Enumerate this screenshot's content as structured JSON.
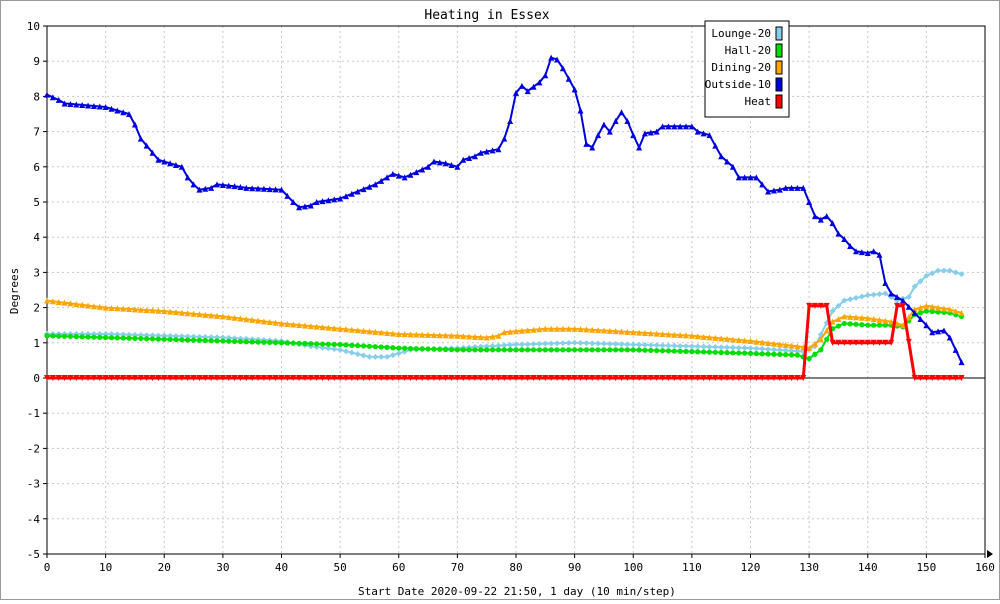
{
  "chart_data": {
    "type": "line",
    "title": "Heating in Essex",
    "xlabel": "Start Date 2020-09-22 21:50, 1 day (10 min/step)",
    "ylabel": "Degrees",
    "xlim": [
      0,
      160
    ],
    "ylim": [
      -5,
      10
    ],
    "xticks": [
      0,
      10,
      20,
      30,
      40,
      50,
      60,
      70,
      80,
      90,
      100,
      110,
      120,
      130,
      140,
      150,
      160
    ],
    "yticks": [
      -5,
      -4,
      -3,
      -2,
      -1,
      0,
      1,
      2,
      3,
      4,
      5,
      6,
      7,
      8,
      9,
      10
    ],
    "grid": true,
    "legend_position": "top-right",
    "series": [
      {
        "name": "Lounge-20",
        "color": "#87ceeb",
        "marker": "diamond",
        "points": [
          [
            0,
            1.25
          ],
          [
            10,
            1.25
          ],
          [
            20,
            1.2
          ],
          [
            30,
            1.15
          ],
          [
            40,
            1.05
          ],
          [
            45,
            0.9
          ],
          [
            50,
            0.8
          ],
          [
            55,
            0.6
          ],
          [
            58,
            0.6
          ],
          [
            62,
            0.8
          ],
          [
            70,
            0.85
          ],
          [
            80,
            0.95
          ],
          [
            90,
            1.0
          ],
          [
            100,
            0.95
          ],
          [
            110,
            0.9
          ],
          [
            120,
            0.85
          ],
          [
            129,
            0.75
          ],
          [
            131,
            0.9
          ],
          [
            134,
            1.9
          ],
          [
            136,
            2.2
          ],
          [
            140,
            2.35
          ],
          [
            143,
            2.4
          ],
          [
            145,
            2.2
          ],
          [
            147,
            2.3
          ],
          [
            148,
            2.6
          ],
          [
            150,
            2.9
          ],
          [
            152,
            3.05
          ],
          [
            154,
            3.05
          ],
          [
            156,
            2.95
          ]
        ]
      },
      {
        "name": "Hall-20",
        "color": "#00dd00",
        "marker": "circle",
        "points": [
          [
            0,
            1.2
          ],
          [
            10,
            1.15
          ],
          [
            20,
            1.1
          ],
          [
            30,
            1.05
          ],
          [
            40,
            1.0
          ],
          [
            50,
            0.95
          ],
          [
            60,
            0.85
          ],
          [
            70,
            0.8
          ],
          [
            80,
            0.8
          ],
          [
            90,
            0.8
          ],
          [
            100,
            0.8
          ],
          [
            110,
            0.75
          ],
          [
            120,
            0.7
          ],
          [
            128,
            0.65
          ],
          [
            130,
            0.55
          ],
          [
            132,
            0.8
          ],
          [
            134,
            1.4
          ],
          [
            136,
            1.55
          ],
          [
            140,
            1.5
          ],
          [
            144,
            1.5
          ],
          [
            146,
            1.45
          ],
          [
            148,
            1.8
          ],
          [
            150,
            1.9
          ],
          [
            154,
            1.85
          ],
          [
            156,
            1.75
          ]
        ]
      },
      {
        "name": "Dining-20",
        "color": "#ffa500",
        "marker": "triangle",
        "points": [
          [
            0,
            2.2
          ],
          [
            10,
            2.0
          ],
          [
            20,
            1.9
          ],
          [
            30,
            1.75
          ],
          [
            40,
            1.55
          ],
          [
            50,
            1.4
          ],
          [
            60,
            1.25
          ],
          [
            70,
            1.2
          ],
          [
            75,
            1.15
          ],
          [
            77,
            1.2
          ],
          [
            78,
            1.3
          ],
          [
            85,
            1.4
          ],
          [
            90,
            1.4
          ],
          [
            100,
            1.3
          ],
          [
            110,
            1.2
          ],
          [
            120,
            1.05
          ],
          [
            128,
            0.9
          ],
          [
            130,
            0.85
          ],
          [
            132,
            1.1
          ],
          [
            134,
            1.6
          ],
          [
            136,
            1.75
          ],
          [
            140,
            1.7
          ],
          [
            144,
            1.6
          ],
          [
            146,
            1.5
          ],
          [
            148,
            1.95
          ],
          [
            150,
            2.05
          ],
          [
            154,
            1.95
          ],
          [
            156,
            1.85
          ]
        ]
      },
      {
        "name": "Outside-10",
        "color": "#0000dd",
        "marker": "triangle",
        "points": [
          [
            0,
            8.05
          ],
          [
            2,
            7.9
          ],
          [
            3,
            7.8
          ],
          [
            10,
            7.7
          ],
          [
            12,
            7.6
          ],
          [
            14,
            7.5
          ],
          [
            15,
            7.2
          ],
          [
            16,
            6.8
          ],
          [
            18,
            6.4
          ],
          [
            19,
            6.2
          ],
          [
            21,
            6.1
          ],
          [
            23,
            6.0
          ],
          [
            24,
            5.7
          ],
          [
            25,
            5.5
          ],
          [
            26,
            5.35
          ],
          [
            28,
            5.4
          ],
          [
            29,
            5.5
          ],
          [
            32,
            5.45
          ],
          [
            34,
            5.4
          ],
          [
            40,
            5.35
          ],
          [
            42,
            5.0
          ],
          [
            43,
            4.85
          ],
          [
            45,
            4.9
          ],
          [
            46,
            5.0
          ],
          [
            50,
            5.1
          ],
          [
            53,
            5.3
          ],
          [
            56,
            5.5
          ],
          [
            58,
            5.7
          ],
          [
            59,
            5.8
          ],
          [
            61,
            5.7
          ],
          [
            63,
            5.85
          ],
          [
            65,
            6.0
          ],
          [
            66,
            6.15
          ],
          [
            68,
            6.1
          ],
          [
            70,
            6.0
          ],
          [
            71,
            6.2
          ],
          [
            73,
            6.3
          ],
          [
            74,
            6.4
          ],
          [
            77,
            6.5
          ],
          [
            78,
            6.8
          ],
          [
            79,
            7.3
          ],
          [
            80,
            8.1
          ],
          [
            81,
            8.3
          ],
          [
            82,
            8.15
          ],
          [
            84,
            8.4
          ],
          [
            85,
            8.6
          ],
          [
            86,
            9.1
          ],
          [
            87,
            9.05
          ],
          [
            88,
            8.8
          ],
          [
            89,
            8.5
          ],
          [
            90,
            8.2
          ],
          [
            91,
            7.6
          ],
          [
            92,
            6.65
          ],
          [
            93,
            6.55
          ],
          [
            94,
            6.9
          ],
          [
            95,
            7.2
          ],
          [
            96,
            7.0
          ],
          [
            97,
            7.3
          ],
          [
            98,
            7.55
          ],
          [
            99,
            7.3
          ],
          [
            100,
            6.9
          ],
          [
            101,
            6.55
          ],
          [
            102,
            6.95
          ],
          [
            104,
            7.0
          ],
          [
            105,
            7.15
          ],
          [
            110,
            7.15
          ],
          [
            111,
            7.0
          ],
          [
            113,
            6.9
          ],
          [
            114,
            6.6
          ],
          [
            115,
            6.3
          ],
          [
            117,
            6.0
          ],
          [
            118,
            5.7
          ],
          [
            121,
            5.7
          ],
          [
            122,
            5.5
          ],
          [
            123,
            5.3
          ],
          [
            125,
            5.35
          ],
          [
            126,
            5.4
          ],
          [
            129,
            5.4
          ],
          [
            130,
            5.0
          ],
          [
            131,
            4.6
          ],
          [
            132,
            4.5
          ],
          [
            133,
            4.6
          ],
          [
            134,
            4.4
          ],
          [
            135,
            4.1
          ],
          [
            136,
            3.95
          ],
          [
            137,
            3.75
          ],
          [
            138,
            3.6
          ],
          [
            140,
            3.55
          ],
          [
            141,
            3.6
          ],
          [
            142,
            3.5
          ],
          [
            143,
            2.7
          ],
          [
            144,
            2.4
          ],
          [
            146,
            2.2
          ],
          [
            148,
            1.85
          ],
          [
            150,
            1.5
          ],
          [
            151,
            1.3
          ],
          [
            153,
            1.35
          ],
          [
            154,
            1.15
          ],
          [
            155,
            0.8
          ],
          [
            156,
            0.45
          ]
        ]
      },
      {
        "name": "Heat",
        "color": "#ff0000",
        "marker": "triangle-down",
        "points": [
          [
            0,
            0
          ],
          [
            129,
            0
          ],
          [
            130,
            2.05
          ],
          [
            133,
            2.05
          ],
          [
            134,
            1.0
          ],
          [
            144,
            1.0
          ],
          [
            145,
            2.05
          ],
          [
            146,
            2.05
          ],
          [
            148,
            0
          ],
          [
            156,
            0
          ]
        ]
      }
    ]
  }
}
